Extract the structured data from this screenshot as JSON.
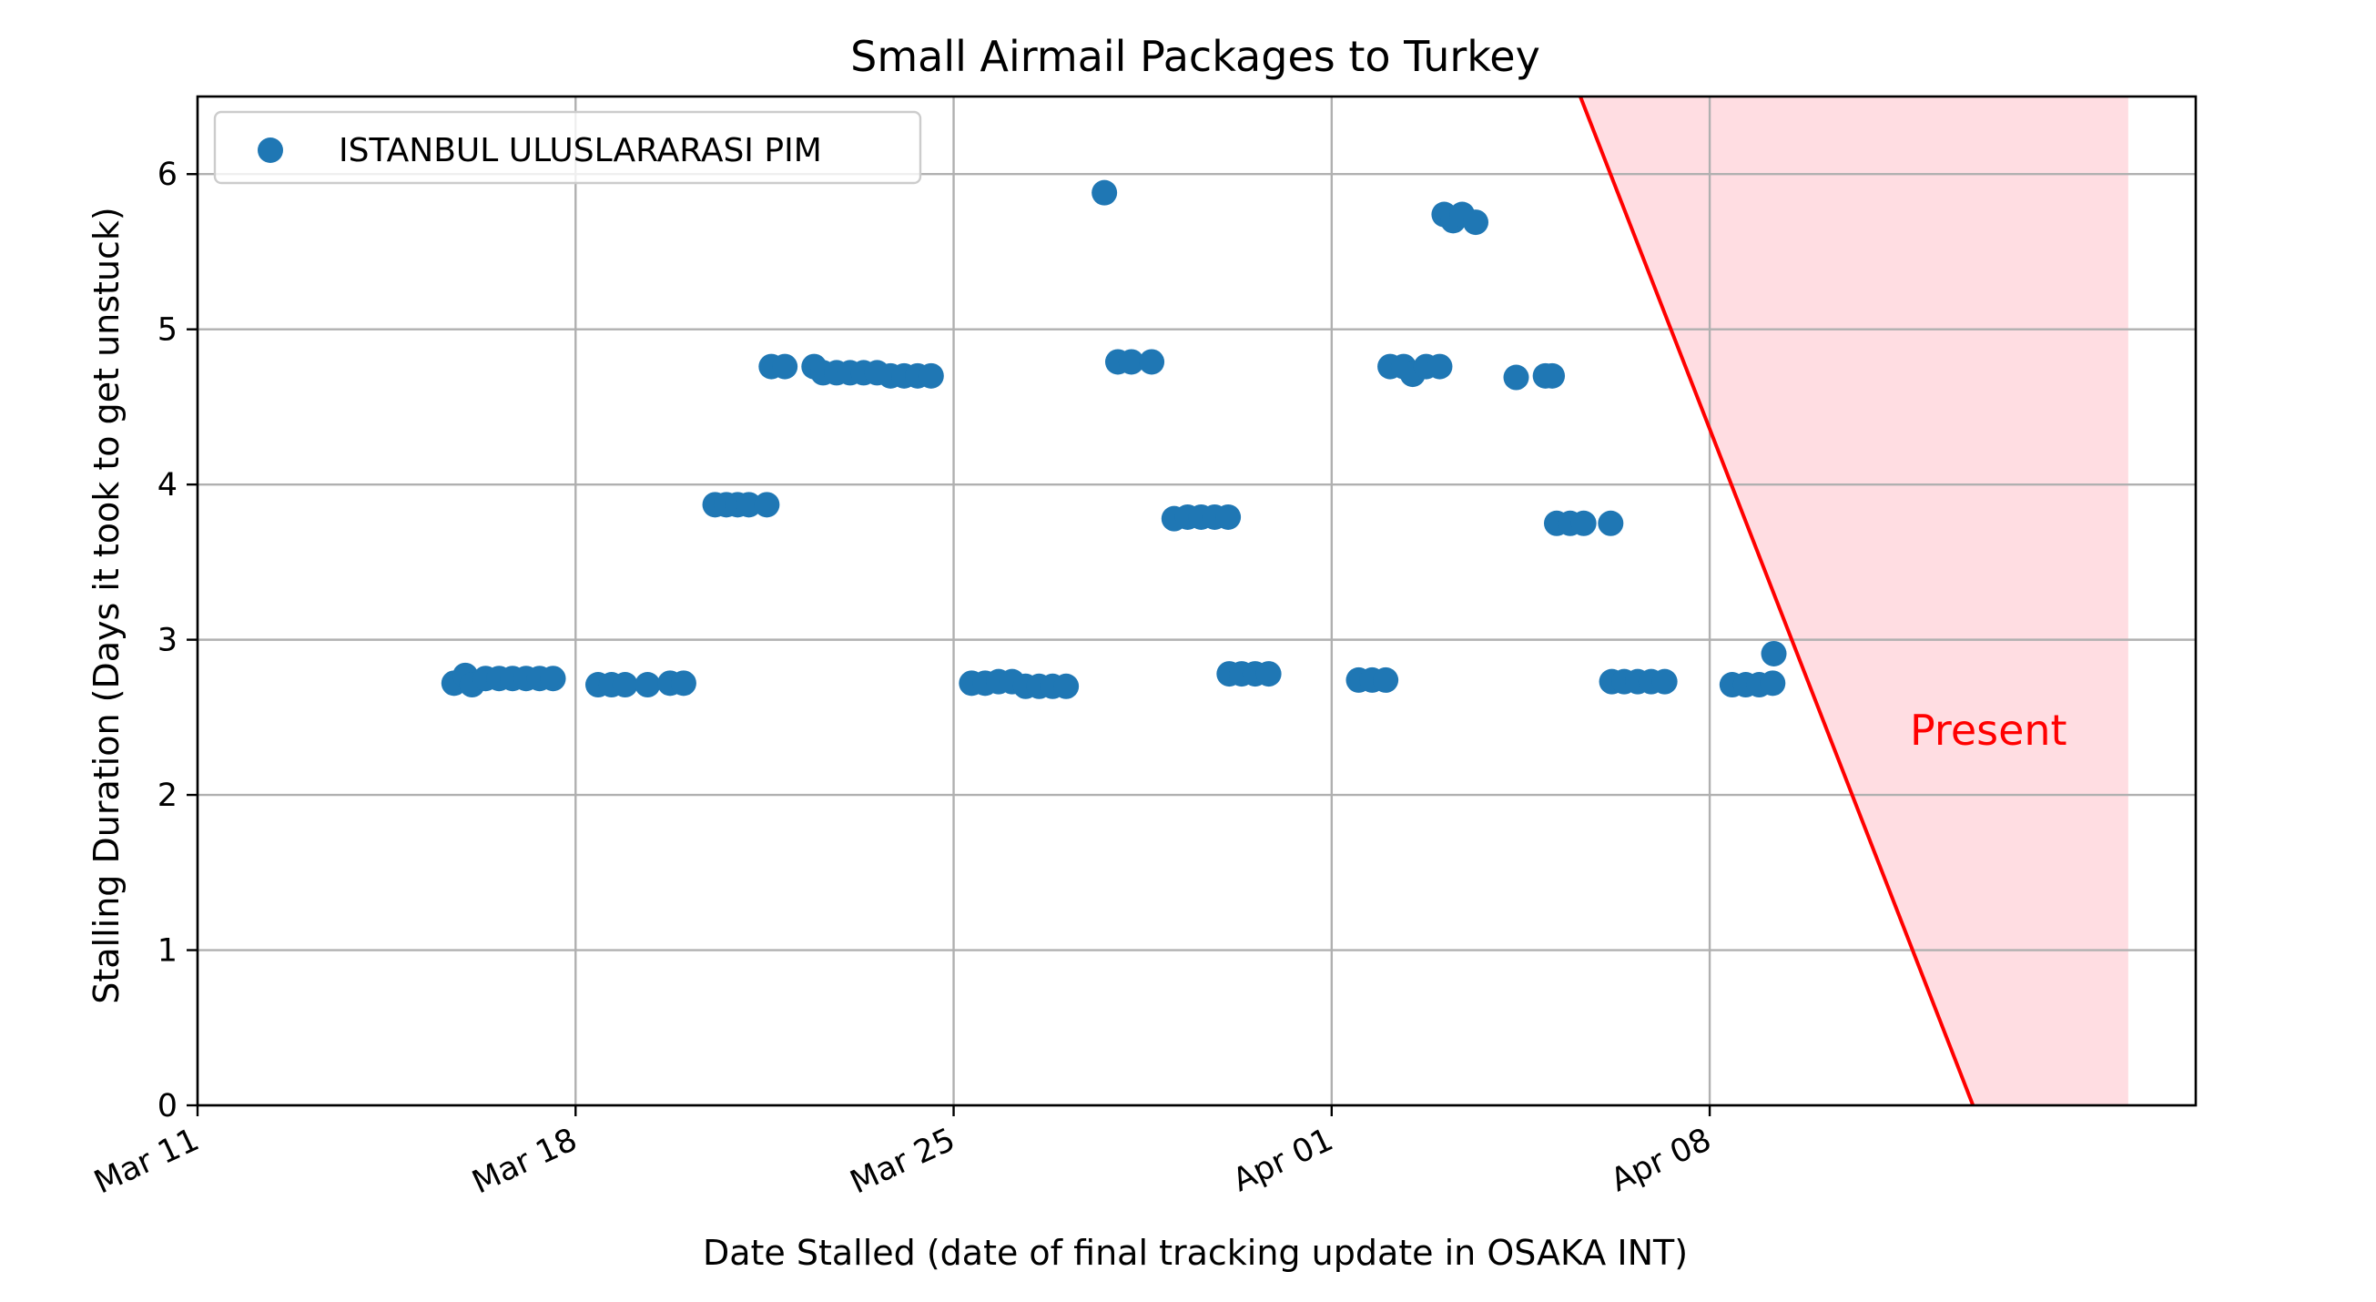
{
  "chart_data": {
    "type": "scatter",
    "title": "Small Airmail Packages to Turkey",
    "xlabel": "Date Stalled (date of final tracking update in OSAKA INT)",
    "ylabel": "Stalling Duration (Days it took to get unstuck)",
    "x_type": "date",
    "xlim": [
      "2024-03-11",
      "2024-04-17 00:00"
    ],
    "ylim": [
      0,
      6.5
    ],
    "x_ticks": [
      {
        "date": "2024-03-11",
        "label": "Mar 11"
      },
      {
        "date": "2024-03-18",
        "label": "Mar 18"
      },
      {
        "date": "2024-03-25",
        "label": "Mar 25"
      },
      {
        "date": "2024-04-01",
        "label": "Apr 01"
      },
      {
        "date": "2024-04-08",
        "label": "Apr 08"
      }
    ],
    "y_ticks": [
      0,
      1,
      2,
      3,
      4,
      5,
      6
    ],
    "grid": true,
    "legend_position": "upper-left",
    "marker_color": "#1f77b4",
    "series": [
      {
        "name": "ISTANBUL ULUSLARARASI PIM",
        "points": [
          [
            "2024-03-15 18:00",
            2.72
          ],
          [
            "2024-03-15 23:00",
            2.77
          ],
          [
            "2024-03-16 02:00",
            2.71
          ],
          [
            "2024-03-16 08:00",
            2.75
          ],
          [
            "2024-03-16 14:00",
            2.75
          ],
          [
            "2024-03-16 20:00",
            2.75
          ],
          [
            "2024-03-17 02:00",
            2.75
          ],
          [
            "2024-03-17 08:00",
            2.75
          ],
          [
            "2024-03-17 14:00",
            2.75
          ],
          [
            "2024-03-18 10:00",
            2.71
          ],
          [
            "2024-03-18 16:00",
            2.71
          ],
          [
            "2024-03-18 22:00",
            2.71
          ],
          [
            "2024-03-19 08:00",
            2.71
          ],
          [
            "2024-03-19 18:00",
            2.72
          ],
          [
            "2024-03-20 00:00",
            2.72
          ],
          [
            "2024-03-20 14:00",
            3.87
          ],
          [
            "2024-03-20 19:00",
            3.87
          ],
          [
            "2024-03-21 00:00",
            3.87
          ],
          [
            "2024-03-21 05:00",
            3.87
          ],
          [
            "2024-03-21 13:00",
            3.87
          ],
          [
            "2024-03-21 15:00",
            4.76
          ],
          [
            "2024-03-21 21:00",
            4.76
          ],
          [
            "2024-03-22 10:00",
            4.76
          ],
          [
            "2024-03-22 14:00",
            4.72
          ],
          [
            "2024-03-22 20:00",
            4.72
          ],
          [
            "2024-03-23 02:00",
            4.72
          ],
          [
            "2024-03-23 08:00",
            4.72
          ],
          [
            "2024-03-23 14:00",
            4.72
          ],
          [
            "2024-03-23 20:00",
            4.7
          ],
          [
            "2024-03-24 02:00",
            4.7
          ],
          [
            "2024-03-24 08:00",
            4.7
          ],
          [
            "2024-03-24 14:00",
            4.7
          ],
          [
            "2024-03-25 08:00",
            2.72
          ],
          [
            "2024-03-25 14:00",
            2.72
          ],
          [
            "2024-03-25 20:00",
            2.73
          ],
          [
            "2024-03-26 02:00",
            2.73
          ],
          [
            "2024-03-26 08:00",
            2.7
          ],
          [
            "2024-03-26 14:00",
            2.7
          ],
          [
            "2024-03-26 20:00",
            2.7
          ],
          [
            "2024-03-27 02:00",
            2.7
          ],
          [
            "2024-03-27 19:00",
            5.88
          ],
          [
            "2024-03-28 01:00",
            4.79
          ],
          [
            "2024-03-28 07:00",
            4.79
          ],
          [
            "2024-03-28 16:00",
            4.79
          ],
          [
            "2024-03-29 02:00",
            3.78
          ],
          [
            "2024-03-29 08:00",
            3.79
          ],
          [
            "2024-03-29 14:00",
            3.79
          ],
          [
            "2024-03-29 20:00",
            3.79
          ],
          [
            "2024-03-30 02:00",
            3.79
          ],
          [
            "2024-03-30 02:30",
            2.78
          ],
          [
            "2024-03-30 08:00",
            2.78
          ],
          [
            "2024-03-30 14:00",
            2.78
          ],
          [
            "2024-03-30 20:00",
            2.78
          ],
          [
            "2024-04-01 12:00",
            2.74
          ],
          [
            "2024-04-01 18:00",
            2.74
          ],
          [
            "2024-04-02 00:00",
            2.74
          ],
          [
            "2024-04-02 02:00",
            4.76
          ],
          [
            "2024-04-02 08:00",
            4.76
          ],
          [
            "2024-04-02 12:00",
            4.71
          ],
          [
            "2024-04-02 18:00",
            4.76
          ],
          [
            "2024-04-03 00:00",
            4.76
          ],
          [
            "2024-04-03 02:00",
            5.74
          ],
          [
            "2024-04-03 06:00",
            5.7
          ],
          [
            "2024-04-03 10:00",
            5.74
          ],
          [
            "2024-04-03 16:00",
            5.69
          ],
          [
            "2024-04-04 10:00",
            4.69
          ],
          [
            "2024-04-04 23:00",
            4.7
          ],
          [
            "2024-04-05 02:00",
            4.7
          ],
          [
            "2024-04-05 04:00",
            3.75
          ],
          [
            "2024-04-05 10:00",
            3.75
          ],
          [
            "2024-04-05 16:00",
            3.75
          ],
          [
            "2024-04-06 04:00",
            3.75
          ],
          [
            "2024-04-06 04:30",
            2.73
          ],
          [
            "2024-04-06 10:00",
            2.73
          ],
          [
            "2024-04-06 16:00",
            2.73
          ],
          [
            "2024-04-06 22:00",
            2.73
          ],
          [
            "2024-04-07 04:00",
            2.73
          ],
          [
            "2024-04-08 10:00",
            2.71
          ],
          [
            "2024-04-08 16:00",
            2.71
          ],
          [
            "2024-04-08 22:00",
            2.71
          ],
          [
            "2024-04-09 04:00",
            2.72
          ],
          [
            "2024-04-09 04:30",
            2.91
          ]
        ]
      }
    ],
    "present_annotation": {
      "label": "Present",
      "color": "#ff0000",
      "shade_color": "#ffdde2",
      "line": [
        [
          "2024-04-05 14:30",
          6.5
        ],
        [
          "2024-04-12 21:00",
          0
        ]
      ],
      "shade_until": "2024-04-15 18:00"
    }
  }
}
